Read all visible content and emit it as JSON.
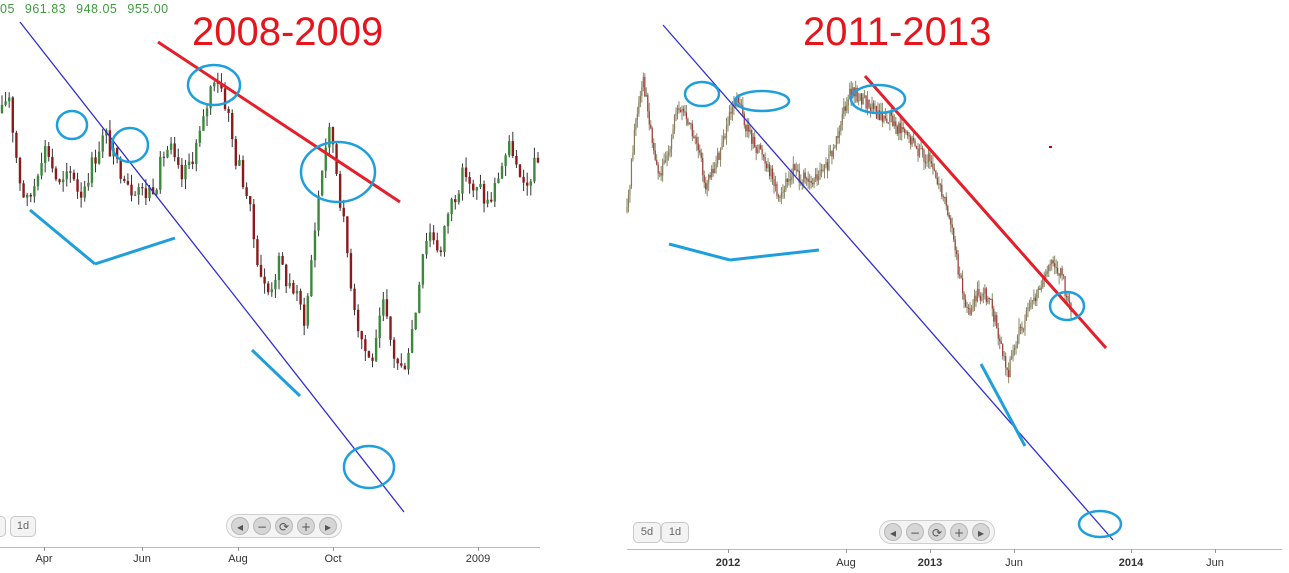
{
  "left_panel": {
    "title": "2008-2009",
    "ohlc_values": [
      "05",
      "961.83",
      "948.05",
      "955.00"
    ],
    "period_buttons": [
      "1d"
    ],
    "nav_icons": [
      "arrow-left-icon",
      "zoom-out-icon",
      "reset-icon",
      "zoom-in-icon",
      "arrow-right-icon"
    ],
    "x_labels": [
      "Apr",
      "Jun",
      "Aug",
      "Oct",
      "2009"
    ]
  },
  "right_panel": {
    "title": "2011-2013",
    "period_buttons": [
      "5d",
      "1d"
    ],
    "nav_icons": [
      "arrow-left-icon",
      "zoom-out-icon",
      "reset-icon",
      "zoom-in-icon",
      "arrow-right-icon"
    ],
    "x_labels": [
      "2012",
      "Aug",
      "2013",
      "Jun",
      "2014",
      "Jun"
    ]
  },
  "colors": {
    "title_red": "#e8141c",
    "trend_red": "#e51e2a",
    "channel_blue": "#2f2fd6",
    "marker_cyan": "#1e9fdc",
    "candle_up_left": "#3a8a3a",
    "candle_down_left": "#8b1a1a",
    "ohlc_green": "#3f9b3f"
  },
  "chart_data": [
    {
      "type": "candlestick",
      "title": "2008-2009",
      "x_tick_labels": [
        "Apr",
        "Jun",
        "Aug",
        "Oct",
        "2009"
      ],
      "path": [
        0.8,
        0.86,
        0.72,
        0.62,
        0.58,
        0.63,
        0.7,
        0.72,
        0.66,
        0.62,
        0.64,
        0.66,
        0.6,
        0.64,
        0.68,
        0.72,
        0.75,
        0.7,
        0.67,
        0.66,
        0.62,
        0.63,
        0.6,
        0.62,
        0.64,
        0.7,
        0.72,
        0.66,
        0.64,
        0.68,
        0.72,
        0.76,
        0.84,
        0.9,
        0.86,
        0.8,
        0.7,
        0.66,
        0.6,
        0.5,
        0.42,
        0.36,
        0.4,
        0.44,
        0.4,
        0.38,
        0.34,
        0.3,
        0.46,
        0.6,
        0.72,
        0.76,
        0.64,
        0.52,
        0.4,
        0.3,
        0.24,
        0.2,
        0.24,
        0.34,
        0.26,
        0.2,
        0.18,
        0.24,
        0.32,
        0.46,
        0.52,
        0.5,
        0.46,
        0.56,
        0.6,
        0.64,
        0.66,
        0.6,
        0.62,
        0.58,
        0.6,
        0.66,
        0.7,
        0.72,
        0.64,
        0.6,
        0.66,
        0.68
      ],
      "annotations": [
        "descending channel line",
        "resistance trendline",
        "support lines",
        "circled peaks"
      ]
    },
    {
      "type": "candlestick",
      "title": "2011-2013",
      "x_tick_labels": [
        "2012",
        "Aug",
        "2013",
        "Jun",
        "2014",
        "Jun"
      ],
      "path": [
        0.6,
        0.8,
        0.92,
        0.78,
        0.68,
        0.72,
        0.82,
        0.84,
        0.8,
        0.74,
        0.66,
        0.7,
        0.76,
        0.82,
        0.86,
        0.8,
        0.76,
        0.74,
        0.7,
        0.64,
        0.66,
        0.7,
        0.68,
        0.66,
        0.68,
        0.7,
        0.74,
        0.82,
        0.88,
        0.87,
        0.86,
        0.84,
        0.82,
        0.82,
        0.8,
        0.78,
        0.76,
        0.74,
        0.72,
        0.68,
        0.64,
        0.56,
        0.44,
        0.36,
        0.4,
        0.42,
        0.38,
        0.3,
        0.22,
        0.3,
        0.34,
        0.38,
        0.42,
        0.46,
        0.48,
        0.44,
        0.36
      ],
      "annotations": [
        "descending channel line",
        "resistance trendline",
        "support lines",
        "circled peaks"
      ]
    }
  ]
}
